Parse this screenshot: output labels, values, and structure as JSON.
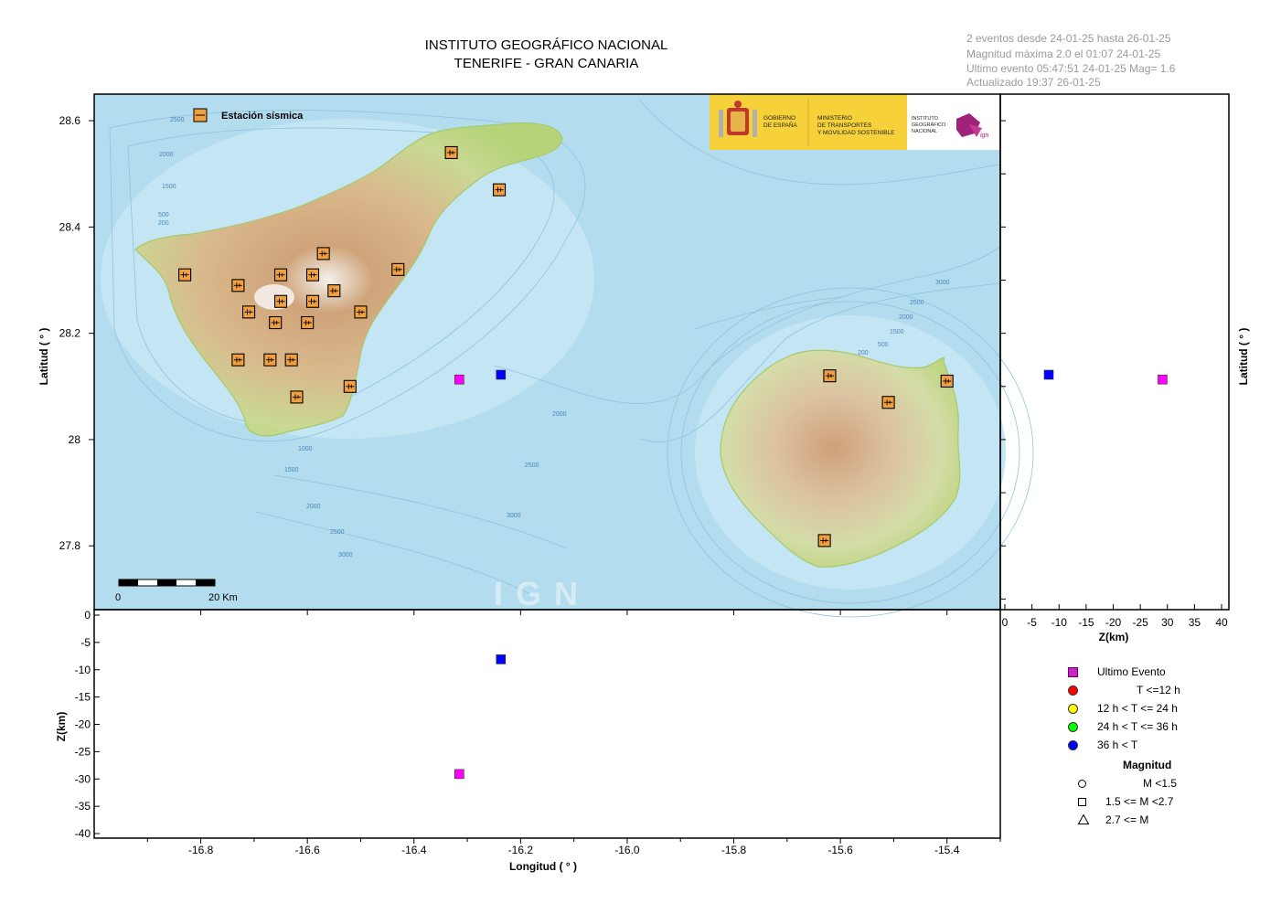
{
  "header": {
    "title_line1": "INSTITUTO GEOGRÁFICO NACIONAL",
    "title_line2": "TENERIFE - GRAN CANARIA"
  },
  "info": {
    "line1": "2 eventos desde 24-01-25 hasta 26-01-25",
    "line2": "Magnitud máxima 2.0 el 01:07 24-01-25",
    "line3": "Ultimo evento   05:47:51 24-01-25  Mag= 1.6",
    "line4": "Actualizado   19:37  26-01-25"
  },
  "map": {
    "station_legend": "Estación sísmica",
    "scale_start": "0",
    "scale_end": "20 Km",
    "watermark": "IGN",
    "logo": {
      "gobierno_1": "GOBIERNO",
      "gobierno_2": "DE ESPAÑA",
      "ministerio_1": "MINISTERIO",
      "ministerio_2": "DE TRANSPORTES",
      "ministerio_3": "Y MOVILIDAD SOSTENIBLE",
      "ign_1": "INSTITUTO",
      "ign_2": "GEOGRÁFICO",
      "ign_3": "NACIONAL",
      "ign_brand": "ign"
    },
    "depth_labels": [
      {
        "text": "2500"
      },
      {
        "text": "2000"
      },
      {
        "text": "1500"
      },
      {
        "text": "500"
      },
      {
        "text": "200"
      },
      {
        "text": "2000"
      },
      {
        "text": "1000"
      },
      {
        "text": "1500"
      },
      {
        "text": "2000"
      },
      {
        "text": "2500"
      },
      {
        "text": "3000"
      },
      {
        "text": "2500"
      },
      {
        "text": "3000"
      },
      {
        "text": "3000"
      },
      {
        "text": "2500"
      },
      {
        "text": "2000"
      },
      {
        "text": "1500"
      },
      {
        "text": "500"
      },
      {
        "text": "200"
      }
    ]
  },
  "axes": {
    "lat_label": "Latitud ( ° )",
    "lon_label": "Longitud ( ° )",
    "z_label": "Z(km)",
    "z_label_right": "Z(km)",
    "lat_ticks": [
      "28.6",
      "28.4",
      "28.2",
      "28",
      "27.8"
    ],
    "lon_ticks": [
      "-16.8",
      "-16.6",
      "-16.4",
      "-16.2",
      "-16.0",
      "-15.8",
      "-15.6",
      "-15.4"
    ],
    "z_ticks_left": [
      "0",
      "-5",
      "-10",
      "-15",
      "-20",
      "-25",
      "-30",
      "-35",
      "-40"
    ],
    "z_ticks_right": [
      "0",
      "-5",
      "-10",
      "-15",
      "-20",
      "-25",
      "30",
      "35",
      "40"
    ]
  },
  "chart_data": {
    "type": "scatter",
    "lon_range": [
      -17.0,
      -15.3
    ],
    "lat_range": [
      27.68,
      28.65
    ],
    "depth_range": [
      0,
      -41
    ],
    "stations": [
      {
        "lon": -16.33,
        "lat": 28.54
      },
      {
        "lon": -16.24,
        "lat": 28.47
      },
      {
        "lon": -16.83,
        "lat": 28.31
      },
      {
        "lon": -16.73,
        "lat": 28.29
      },
      {
        "lon": -16.65,
        "lat": 28.31
      },
      {
        "lon": -16.59,
        "lat": 28.31
      },
      {
        "lon": -16.57,
        "lat": 28.35
      },
      {
        "lon": -16.43,
        "lat": 28.32
      },
      {
        "lon": -16.55,
        "lat": 28.28
      },
      {
        "lon": -16.71,
        "lat": 28.24
      },
      {
        "lon": -16.65,
        "lat": 28.26
      },
      {
        "lon": -16.59,
        "lat": 28.26
      },
      {
        "lon": -16.5,
        "lat": 28.24
      },
      {
        "lon": -16.66,
        "lat": 28.22
      },
      {
        "lon": -16.6,
        "lat": 28.22
      },
      {
        "lon": -16.73,
        "lat": 28.15
      },
      {
        "lon": -16.67,
        "lat": 28.15
      },
      {
        "lon": -16.63,
        "lat": 28.15
      },
      {
        "lon": -16.52,
        "lat": 28.1
      },
      {
        "lon": -16.62,
        "lat": 28.08
      },
      {
        "lon": -15.62,
        "lat": 28.12
      },
      {
        "lon": -15.51,
        "lat": 28.07
      },
      {
        "lon": -15.4,
        "lat": 28.11
      },
      {
        "lon": -15.63,
        "lat": 27.81
      }
    ],
    "events": [
      {
        "lon": -16.237,
        "lat": 28.122,
        "depth": -8.1,
        "color": "#0000ff",
        "category": "36 h <  T"
      },
      {
        "lon": -16.315,
        "lat": 28.113,
        "depth": -29.1,
        "color": "#ff00ff",
        "category": "Ultimo Evento"
      }
    ]
  },
  "legend": {
    "items": [
      {
        "label": "Ultimo Evento",
        "color": "#cc22cc",
        "shape": "square"
      },
      {
        "label": "T <=12 h",
        "color": "#ff0000",
        "shape": "circle"
      },
      {
        "label": "12 h  < T <= 24 h",
        "color": "#ffff00",
        "shape": "circle"
      },
      {
        "label": "24 h  < T <= 36 h",
        "color": "#00ff00",
        "shape": "circle"
      },
      {
        "label": "36 h <  T",
        "color": "#0000ff",
        "shape": "circle"
      }
    ],
    "magnitude_title": "Magnitud",
    "magnitude_items": [
      {
        "label": "M <1.5",
        "shape": "circle"
      },
      {
        "label": "1.5 <= M <2.7",
        "shape": "square"
      },
      {
        "label": "2.7 <= M",
        "shape": "triangle"
      }
    ]
  },
  "colors": {
    "sea": "#b5ddf0",
    "land_low": "#c6dc8c",
    "land_mid": "#d9b98c",
    "land_high": "#c79a6b",
    "station_fill": "#f0a040",
    "logo_yellow": "#f6d13a"
  }
}
